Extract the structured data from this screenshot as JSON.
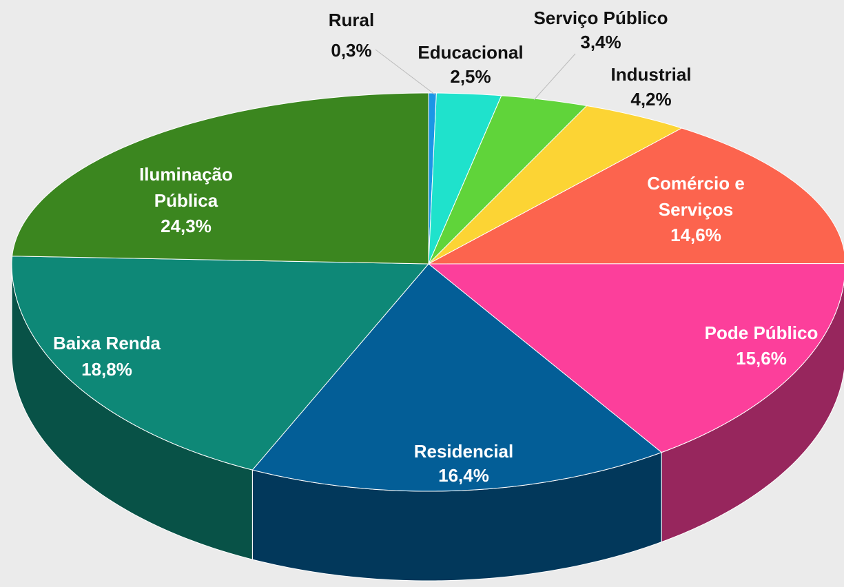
{
  "chart_data": {
    "type": "pie",
    "categories": [
      "Rural",
      "Educacional",
      "Serviço Público",
      "Industrial",
      "Comércio e Serviços",
      "Pode Público",
      "Residencial",
      "Baixa Renda",
      "Iluminação Pública"
    ],
    "values": [
      0.3,
      2.5,
      3.4,
      4.2,
      14.6,
      15.6,
      16.4,
      18.8,
      24.3
    ],
    "value_labels": [
      "0,3%",
      "2,5%",
      "3,4%",
      "4,2%",
      "14,6%",
      "15,6%",
      "16,4%",
      "18,8%",
      "24,3%"
    ],
    "colors": [
      "#1b96e6",
      "#1fe2cc",
      "#60d43a",
      "#fcd434",
      "#fc644e",
      "#fc3f9b",
      "#035e97",
      "#0e8877",
      "#3b861f"
    ]
  }
}
